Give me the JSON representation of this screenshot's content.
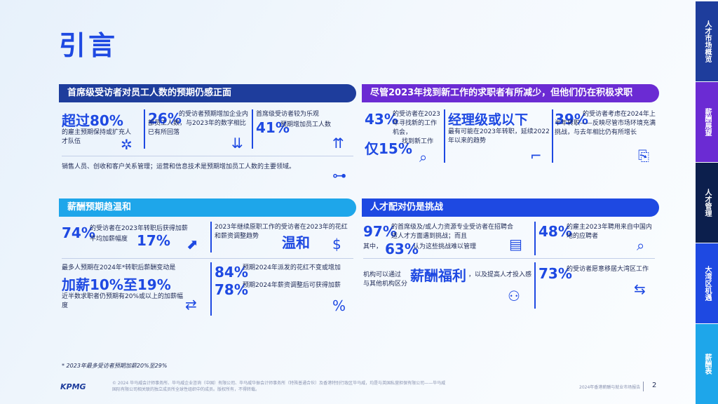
{
  "page_title": "引言",
  "panels": {
    "p1": {
      "heading": "首席级受访者对员工人数的预期仍感正面",
      "s1_big": "超过80%",
      "s1_text": "的雇主预期保持或扩充人才队伍",
      "s2_big": "26%",
      "s2_text": "的受访者预期增加企业内部员工人数，与2023年的数字相比已有所回落",
      "s3_big": "41%",
      "s3_text_top": "首席级受访者较为乐观",
      "s3_text": "预期增加员工人数",
      "footer": "销售人员、创收和客户关系管理；运营和信息技术是预期增加员工人数的主要领域。"
    },
    "p2": {
      "heading": "尽管2023年找到新工作的求职者有所减少，但他们仍在积极求职",
      "s1_big": "43%",
      "s1_text": "的受访者在2023年寻找新的工作机会，",
      "s1_big2": "仅15%",
      "s1_text2": "找到新工作",
      "s2_big": "经理级或以下",
      "s2_text": "最有可能在2023年转职，延续2022年以来的趋势",
      "s3_big": "39%",
      "s3_text": "的受访者考虑在2024年上半年转职——反映尽管市场环境充满挑战，与去年相比仍有所增长"
    },
    "p3": {
      "heading": "薪酬预期趋温和",
      "s1_big": "74%",
      "s1_text": "的受访者在2023年转职后获得加薪",
      "s1_text2": "平均加薪幅度",
      "s1_big2": "17%",
      "s2_text": "2023年继续原职工作的受访者在2023年的花红和薪资调整趋势",
      "s2_big": "温和",
      "s3_text_top": "最多人预期在2024年*转职后薪酬变动是",
      "s3_big": "加薪10%至19%",
      "s3_text": "近半数求职者仍预期有20%或以上的加薪幅度",
      "s4_big": "84%",
      "s4_text": "预期2024年派发的花红不变或增加",
      "s5_big": "78%",
      "s5_text": "预期2024年薪资调整后可获得加薪"
    },
    "p4": {
      "heading": "人才配对仍是挑战",
      "s1_big": "97%",
      "s1_text": "的首席级及/或人力资源专业受访者在招聘合适人才方面遇到挑战；而且",
      "s1_text2": "其中，",
      "s1_big2": "63%",
      "s1_text3": "认为这些挑战难以管理",
      "s2_big": "48%",
      "s2_text": "的雇主2023年聘用来自中国内地的应聘者",
      "s3_text": "机构可以通过",
      "s3_big": "薪酬福利",
      "s3_text2": "，以及提高人才投入感与其他机构区分",
      "s4_big": "73%",
      "s4_text": "的受访者愿意移居大湾区工作"
    }
  },
  "footnote": "* 2023年最多受访者预期加薪20%至29%",
  "logo_text": "KPMG",
  "copyright": "© 2024 毕马威会计师事务所、毕马威企业咨询（中国）有限公司、毕马威华振会计师事务所（特殊普通合伙）及香港特别行政区毕马威，均是与英国私营担保有限公司——毕马威国际有限公司相关联的独立成员所全球性组织中的成员。版权所有，不得转载。",
  "report_name": "2024年香港薪酬与就业市场报告",
  "page_number": "2",
  "side_tabs": [
    {
      "label": "人才市场概览",
      "color": "#1e3d9c"
    },
    {
      "label": "薪酬展望",
      "color": "#6b2bd3"
    },
    {
      "label": "人才管理",
      "color": "#0c1f4d"
    },
    {
      "label": "大湾区机遇",
      "color": "#1e49e2"
    },
    {
      "label": "薪酬表",
      "color": "#1ea6ea"
    }
  ],
  "icons": [
    "people-network-icon",
    "chart-down-icon",
    "people-up-icon",
    "org-chart-icon",
    "search-person-icon",
    "stairs-icon",
    "document-search-icon",
    "chart-up-icon",
    "money-icon",
    "person-arrows-icon",
    "percent-badge-icon",
    "document-icon",
    "magnifier-chart-icon",
    "team-icon",
    "transfer-icon"
  ]
}
